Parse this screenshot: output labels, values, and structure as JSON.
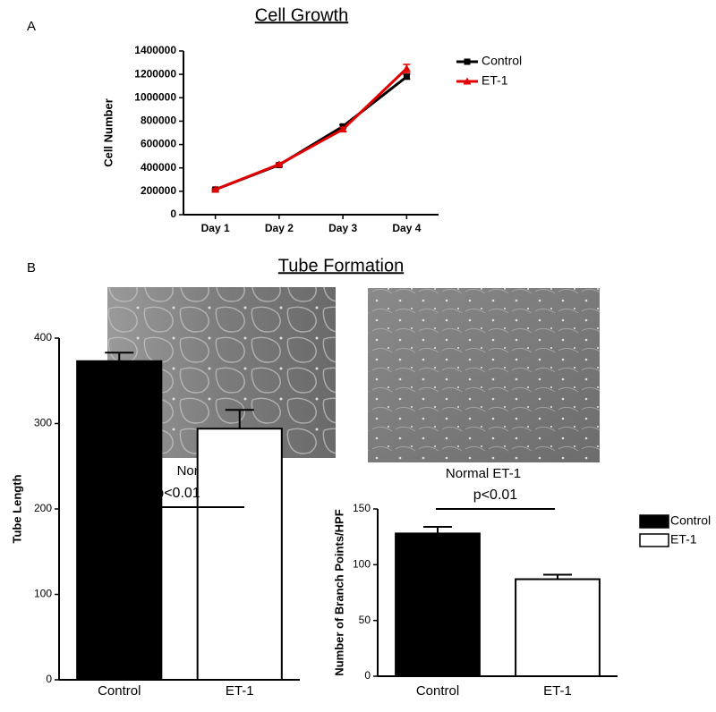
{
  "chart_data": [
    {
      "type": "line",
      "panel_label": "A",
      "title": "Cell Growth",
      "ylabel": "Cell Number",
      "categories": [
        "Day 1",
        "Day 2",
        "Day 3",
        "Day 4"
      ],
      "series": [
        {
          "name": "Control",
          "color": "#000000",
          "marker": "square",
          "values": [
            215000,
            425000,
            755000,
            1180000
          ],
          "errors": [
            8000,
            10000,
            15000,
            20000
          ]
        },
        {
          "name": "ET-1",
          "color": "#e00000",
          "marker": "triangle",
          "values": [
            215000,
            430000,
            730000,
            1250000
          ],
          "errors": [
            8000,
            10000,
            15000,
            35000
          ]
        }
      ],
      "ylim": [
        0,
        1400000
      ],
      "yticks": [
        0,
        200000,
        400000,
        600000,
        800000,
        1000000,
        1200000,
        1400000
      ],
      "legend": "right"
    },
    {
      "type": "bar",
      "ylabel": "Tube Length",
      "categories": [
        "Control",
        "ET-1"
      ],
      "values": [
        373,
        294
      ],
      "errors": [
        10,
        22
      ],
      "colors": [
        "#000000",
        "#ffffff"
      ],
      "annotation": "p<0.01",
      "ylim": [
        0,
        400
      ],
      "yticks": [
        0,
        100,
        200,
        300,
        400
      ]
    },
    {
      "type": "bar",
      "ylabel": "Number of Branch Points/HPF",
      "categories": [
        "Control",
        "ET-1"
      ],
      "values": [
        128,
        87
      ],
      "errors": [
        6,
        4
      ],
      "colors": [
        "#000000",
        "#ffffff"
      ],
      "annotation": "p<0.01",
      "ylim": [
        0,
        150
      ],
      "yticks": [
        0,
        50,
        100,
        150
      ],
      "legend": "right"
    }
  ],
  "panel_b": {
    "label": "B",
    "title": "Tube Formation",
    "captions": [
      "Normal Control",
      "Normal ET-1"
    ]
  }
}
